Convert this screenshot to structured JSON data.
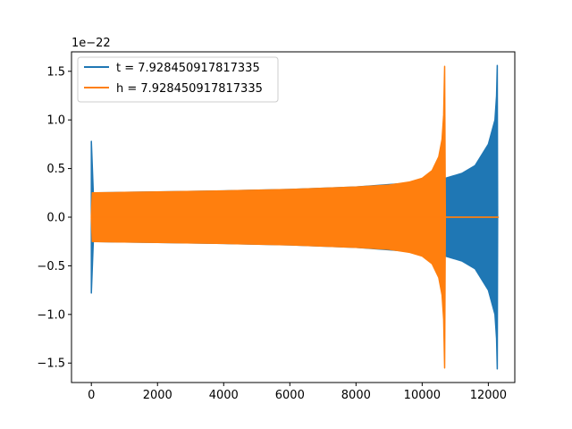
{
  "chart_data": {
    "type": "line",
    "offset_label": "1e−22",
    "xlim": [
      -600,
      12800
    ],
    "ylim": [
      -1.7,
      1.7
    ],
    "x_ticks": [
      0,
      2000,
      4000,
      6000,
      8000,
      10000,
      12000
    ],
    "x_tick_labels": [
      "0",
      "2000",
      "4000",
      "6000",
      "8000",
      "10000",
      "12000"
    ],
    "y_ticks": [
      -1.5,
      -1.0,
      -0.5,
      0.0,
      0.5,
      1.0,
      1.5
    ],
    "y_tick_labels": [
      "−1.5",
      "−1.0",
      "−0.5",
      "0.0",
      "0.5",
      "1.0",
      "1.5"
    ],
    "grid": false,
    "legend_position": "top-left",
    "series": [
      {
        "name": "t = 7.928450917817335",
        "color": "#1f77b4",
        "envelope": {
          "x": [
            0,
            0,
            60,
            200,
            1000,
            2000,
            4000,
            6000,
            8000,
            10000,
            10600,
            10700,
            11200,
            11600,
            12000,
            12200,
            12250,
            12270,
            12280,
            12300
          ],
          "upper": [
            0.78,
            0.78,
            0.25,
            0.25,
            0.255,
            0.26,
            0.27,
            0.285,
            0.31,
            0.36,
            0.38,
            0.4,
            0.45,
            0.53,
            0.75,
            1.0,
            1.25,
            1.56,
            0.0,
            0.0
          ],
          "lower": [
            -0.78,
            -0.78,
            -0.25,
            -0.25,
            -0.255,
            -0.26,
            -0.27,
            -0.285,
            -0.31,
            -0.36,
            -0.38,
            -0.4,
            -0.45,
            -0.53,
            -0.75,
            -1.0,
            -1.25,
            -1.56,
            0.0,
            0.0
          ]
        }
      },
      {
        "name": "h = 7.928450917817335",
        "color": "#ff7f0e",
        "envelope": {
          "x": [
            0,
            30,
            1000,
            2000,
            4000,
            6000,
            8000,
            9000,
            9600,
            10000,
            10300,
            10500,
            10600,
            10650,
            10680,
            10700,
            12300
          ],
          "upper": [
            0.0,
            0.25,
            0.255,
            0.26,
            0.27,
            0.285,
            0.31,
            0.33,
            0.36,
            0.4,
            0.48,
            0.62,
            0.8,
            1.05,
            1.55,
            0.0,
            0.0
          ],
          "lower": [
            0.0,
            -0.25,
            -0.255,
            -0.26,
            -0.27,
            -0.285,
            -0.31,
            -0.33,
            -0.36,
            -0.4,
            -0.48,
            -0.62,
            -0.8,
            -1.05,
            -1.55,
            0.0,
            0.0
          ]
        }
      }
    ]
  }
}
